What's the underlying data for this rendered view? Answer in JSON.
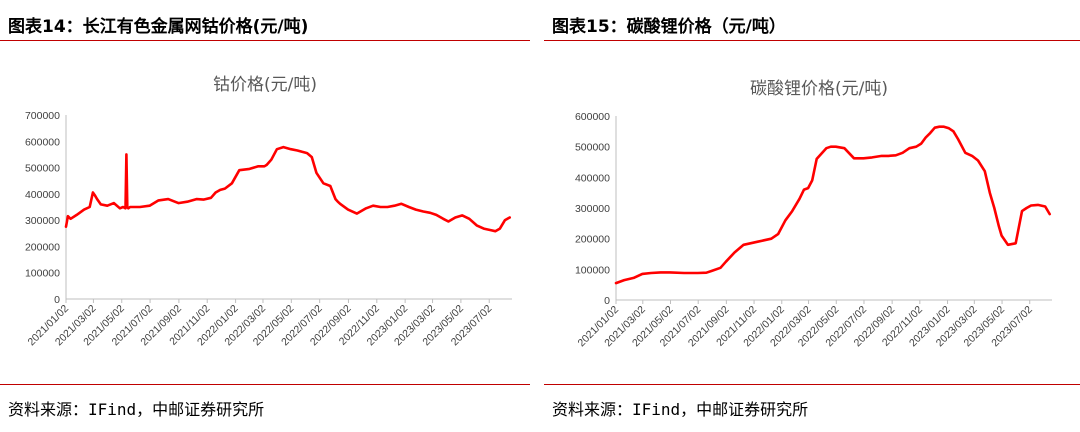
{
  "figures": [
    {
      "figure_title": "图表14：长江有色金属网钴价格(元/吨)",
      "source": "资料来源：IFind，中邮证券研究所"
    },
    {
      "figure_title": "图表15：碳酸锂价格（元/吨）",
      "source": "资料来源：IFind，中邮证券研究所"
    }
  ],
  "chart_data": [
    {
      "type": "line",
      "title": "钴价格(元/吨)",
      "xlabel": "",
      "ylabel": "",
      "ylim": [
        0,
        700000
      ],
      "yticks": [
        0,
        100000,
        200000,
        300000,
        400000,
        500000,
        600000,
        700000
      ],
      "xticks": [
        "2021/01/02",
        "2021/03/02",
        "2021/05/02",
        "2021/07/02",
        "2021/09/02",
        "2021/11/02",
        "2022/01/02",
        "2022/03/02",
        "2022/05/02",
        "2022/07/02",
        "2022/09/02",
        "2022/11/02",
        "2023/01/02",
        "2023/03/02",
        "2023/05/02",
        "2023/07/02"
      ],
      "xlim": [
        "2021/01/02",
        "2023/08/20"
      ],
      "grid": false,
      "color": "#ff0000",
      "series": [
        {
          "x": [
            "2021/01/02",
            "2021/01/06",
            "2021/01/12",
            "2021/01/25",
            "2021/02/10",
            "2021/02/22",
            "2021/03/01",
            "2021/03/05",
            "2021/03/10",
            "2021/03/18",
            "2021/04/01",
            "2021/04/15",
            "2021/04/28",
            "2021/05/05",
            "2021/05/10",
            "2021/05/12",
            "2021/05/14",
            "2021/05/16",
            "2021/05/20",
            "2021/06/10",
            "2021/07/01",
            "2021/07/20",
            "2021/08/10",
            "2021/09/01",
            "2021/09/20",
            "2021/10/10",
            "2021/10/25",
            "2021/11/10",
            "2021/11/20",
            "2021/11/30",
            "2021/12/10",
            "2021/12/25",
            "2022/01/10",
            "2022/02/01",
            "2022/02/20",
            "2022/03/05",
            "2022/03/10",
            "2022/03/20",
            "2022/04/01",
            "2022/04/15",
            "2022/05/01",
            "2022/05/15",
            "2022/05/25",
            "2022/06/05",
            "2022/06/15",
            "2022/06/25",
            "2022/07/10",
            "2022/07/25",
            "2022/08/05",
            "2022/08/10",
            "2022/08/15",
            "2022/09/01",
            "2022/09/20",
            "2022/10/10",
            "2022/10/25",
            "2022/11/10",
            "2022/11/25",
            "2022/12/10",
            "2022/12/25",
            "2023/01/10",
            "2023/01/25",
            "2023/02/10",
            "2023/02/25",
            "2023/03/10",
            "2023/03/25",
            "2023/04/05",
            "2023/04/20",
            "2023/05/05",
            "2023/05/20",
            "2023/06/05",
            "2023/06/20",
            "2023/07/05",
            "2023/07/15",
            "2023/07/25",
            "2023/08/05",
            "2023/08/15"
          ],
          "y": [
            275000,
            315000,
            305000,
            320000,
            340000,
            350000,
            405000,
            395000,
            380000,
            360000,
            355000,
            365000,
            345000,
            350000,
            345000,
            550000,
            350000,
            345000,
            350000,
            350000,
            355000,
            375000,
            380000,
            365000,
            370000,
            380000,
            378000,
            385000,
            405000,
            415000,
            420000,
            440000,
            490000,
            495000,
            505000,
            505000,
            510000,
            530000,
            570000,
            578000,
            570000,
            565000,
            560000,
            555000,
            540000,
            480000,
            440000,
            430000,
            380000,
            370000,
            362000,
            340000,
            325000,
            345000,
            355000,
            350000,
            350000,
            355000,
            362000,
            350000,
            340000,
            333000,
            328000,
            320000,
            305000,
            295000,
            310000,
            318000,
            305000,
            280000,
            268000,
            262000,
            258000,
            268000,
            300000,
            310000
          ]
        }
      ]
    },
    {
      "type": "line",
      "title": "碳酸锂价格(元/吨)",
      "xlabel": "",
      "ylabel": "",
      "ylim": [
        0,
        600000
      ],
      "yticks": [
        0,
        100000,
        200000,
        300000,
        400000,
        500000,
        600000
      ],
      "xticks": [
        "2021/01/02",
        "2021/03/02",
        "2021/05/02",
        "2021/07/02",
        "2021/09/02",
        "2021/11/02",
        "2022/01/02",
        "2022/03/02",
        "2022/05/02",
        "2022/07/02",
        "2022/09/02",
        "2022/11/02",
        "2023/01/02",
        "2023/03/02",
        "2023/05/02",
        "2023/07/02"
      ],
      "xlim": [
        "2021/01/02",
        "2023/08/20"
      ],
      "grid": false,
      "color": "#ff0000",
      "series": [
        {
          "x": [
            "2021/01/02",
            "2021/01/20",
            "2021/02/10",
            "2021/03/01",
            "2021/03/20",
            "2021/04/10",
            "2021/05/01",
            "2021/06/01",
            "2021/07/01",
            "2021/07/20",
            "2021/08/01",
            "2021/08/20",
            "2021/09/01",
            "2021/09/20",
            "2021/10/10",
            "2021/10/25",
            "2021/11/10",
            "2021/11/25",
            "2021/12/10",
            "2021/12/25",
            "2022/01/10",
            "2022/01/25",
            "2022/02/10",
            "2022/02/20",
            "2022/03/01",
            "2022/03/10",
            "2022/03/20",
            "2022/04/10",
            "2022/04/20",
            "2022/05/01",
            "2022/05/20",
            "2022/06/10",
            "2022/07/01",
            "2022/07/20",
            "2022/08/10",
            "2022/08/25",
            "2022/09/10",
            "2022/09/25",
            "2022/10/10",
            "2022/10/25",
            "2022/11/05",
            "2022/11/15",
            "2022/11/25",
            "2022/12/05",
            "2022/12/15",
            "2022/12/25",
            "2023/01/05",
            "2023/01/15",
            "2023/01/25",
            "2023/02/10",
            "2023/02/25",
            "2023/03/10",
            "2023/03/25",
            "2023/04/05",
            "2023/04/15",
            "2023/04/25",
            "2023/05/01",
            "2023/05/08",
            "2023/05/15",
            "2023/05/22",
            "2023/06/01",
            "2023/06/15",
            "2023/06/25",
            "2023/07/05",
            "2023/07/20",
            "2023/08/05",
            "2023/08/15"
          ],
          "y": [
            55000,
            65000,
            72000,
            85000,
            88000,
            90000,
            90000,
            88000,
            88000,
            89000,
            95000,
            105000,
            125000,
            155000,
            180000,
            185000,
            190000,
            195000,
            200000,
            215000,
            260000,
            290000,
            330000,
            360000,
            365000,
            390000,
            460000,
            495000,
            500000,
            500000,
            495000,
            462000,
            462000,
            465000,
            470000,
            470000,
            472000,
            480000,
            495000,
            500000,
            510000,
            530000,
            545000,
            562000,
            565000,
            565000,
            560000,
            550000,
            525000,
            480000,
            470000,
            455000,
            420000,
            350000,
            300000,
            240000,
            210000,
            195000,
            180000,
            182000,
            185000,
            290000,
            300000,
            308000,
            310000,
            305000,
            280000
          ]
        }
      ]
    }
  ]
}
